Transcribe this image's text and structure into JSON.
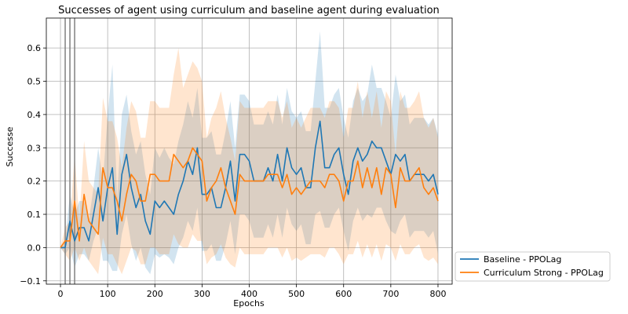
{
  "chart_data": {
    "type": "line",
    "title": "Successes of agent using curriculum and baseline agent during evaluation",
    "xlabel": "Epochs",
    "ylabel": "Successe",
    "xlim": [
      -30,
      830
    ],
    "ylim": [
      -0.11,
      0.69
    ],
    "xticks": [
      0,
      100,
      200,
      300,
      400,
      500,
      600,
      700,
      800
    ],
    "yticks": [
      -0.1,
      0.0,
      0.1,
      0.2,
      0.3,
      0.4,
      0.5,
      0.6
    ],
    "ytick_labels": [
      "−0.1",
      "0.0",
      "0.1",
      "0.2",
      "0.3",
      "0.4",
      "0.5",
      "0.6"
    ],
    "grid": true,
    "legend_placement": "outside-bottom-right",
    "vertical_markers": [
      10,
      20,
      30
    ],
    "marker_color": "#808080",
    "x": [
      0,
      10,
      20,
      30,
      40,
      50,
      60,
      70,
      80,
      90,
      100,
      110,
      120,
      130,
      140,
      150,
      160,
      170,
      180,
      190,
      200,
      210,
      220,
      230,
      240,
      250,
      260,
      270,
      280,
      290,
      300,
      310,
      320,
      330,
      340,
      350,
      360,
      370,
      380,
      390,
      400,
      410,
      420,
      430,
      440,
      450,
      460,
      470,
      480,
      490,
      500,
      510,
      520,
      530,
      540,
      550,
      560,
      570,
      580,
      590,
      600,
      610,
      620,
      630,
      640,
      650,
      660,
      670,
      680,
      690,
      700,
      710,
      720,
      730,
      740,
      750,
      760,
      770,
      780,
      790,
      800
    ],
    "series": [
      {
        "name": "Baseline - PPOLag",
        "color": "#1f77b4",
        "values": [
          0.0,
          0.0,
          0.08,
          0.02,
          0.06,
          0.06,
          0.02,
          0.1,
          0.18,
          0.08,
          0.18,
          0.24,
          0.04,
          0.22,
          0.28,
          0.18,
          0.12,
          0.16,
          0.08,
          0.04,
          0.14,
          0.12,
          0.14,
          0.12,
          0.1,
          0.16,
          0.2,
          0.26,
          0.22,
          0.3,
          0.16,
          0.16,
          0.18,
          0.12,
          0.12,
          0.18,
          0.26,
          0.14,
          0.28,
          0.28,
          0.26,
          0.2,
          0.2,
          0.2,
          0.24,
          0.2,
          0.28,
          0.2,
          0.3,
          0.24,
          0.22,
          0.24,
          0.18,
          0.18,
          0.3,
          0.38,
          0.24,
          0.24,
          0.28,
          0.3,
          0.22,
          0.16,
          0.26,
          0.3,
          0.26,
          0.28,
          0.32,
          0.3,
          0.3,
          0.26,
          0.22,
          0.28,
          0.26,
          0.28,
          0.2,
          0.22,
          0.22,
          0.22,
          0.2,
          0.22,
          0.16
        ],
        "band_upper": [
          0.0,
          0.02,
          0.16,
          0.1,
          0.14,
          0.14,
          0.08,
          0.18,
          0.3,
          0.2,
          0.4,
          0.55,
          0.15,
          0.4,
          0.46,
          0.35,
          0.28,
          0.32,
          0.22,
          0.16,
          0.3,
          0.27,
          0.3,
          0.27,
          0.25,
          0.32,
          0.37,
          0.44,
          0.39,
          0.48,
          0.33,
          0.33,
          0.35,
          0.28,
          0.28,
          0.35,
          0.44,
          0.3,
          0.46,
          0.46,
          0.44,
          0.37,
          0.37,
          0.37,
          0.41,
          0.37,
          0.46,
          0.37,
          0.48,
          0.41,
          0.39,
          0.41,
          0.35,
          0.35,
          0.5,
          0.65,
          0.42,
          0.42,
          0.46,
          0.48,
          0.39,
          0.33,
          0.44,
          0.48,
          0.44,
          0.46,
          0.55,
          0.48,
          0.48,
          0.44,
          0.39,
          0.52,
          0.44,
          0.46,
          0.37,
          0.39,
          0.39,
          0.39,
          0.37,
          0.39,
          0.34
        ],
        "band_lower": [
          0.0,
          -0.02,
          0.0,
          -0.06,
          -0.02,
          -0.02,
          -0.04,
          0.02,
          0.06,
          -0.04,
          -0.04,
          -0.07,
          -0.07,
          0.04,
          0.1,
          0.01,
          -0.04,
          0.0,
          -0.06,
          -0.08,
          -0.02,
          -0.03,
          -0.02,
          -0.03,
          -0.05,
          0.0,
          0.03,
          0.08,
          0.05,
          0.12,
          -0.01,
          -0.01,
          0.01,
          -0.04,
          -0.04,
          0.01,
          0.08,
          -0.02,
          0.1,
          0.1,
          0.08,
          0.03,
          0.03,
          0.03,
          0.07,
          0.03,
          0.1,
          0.03,
          0.12,
          0.07,
          0.05,
          0.07,
          0.01,
          0.01,
          0.1,
          0.11,
          0.06,
          0.06,
          0.1,
          0.12,
          0.05,
          -0.01,
          0.08,
          0.12,
          0.08,
          0.1,
          0.09,
          0.12,
          0.12,
          0.08,
          0.05,
          0.04,
          0.08,
          0.1,
          0.03,
          0.05,
          0.05,
          0.05,
          0.03,
          0.05,
          -0.02
        ]
      },
      {
        "name": "Curriculum Strong - PPOLag",
        "color": "#ff7f0e",
        "values": [
          0.0,
          0.02,
          0.02,
          0.14,
          0.02,
          0.16,
          0.08,
          0.06,
          0.04,
          0.24,
          0.18,
          0.18,
          0.14,
          0.08,
          0.16,
          0.22,
          0.2,
          0.14,
          0.14,
          0.22,
          0.22,
          0.2,
          0.2,
          0.2,
          0.28,
          0.26,
          0.24,
          0.26,
          0.3,
          0.28,
          0.26,
          0.14,
          0.18,
          0.2,
          0.24,
          0.18,
          0.14,
          0.1,
          0.22,
          0.2,
          0.2,
          0.2,
          0.2,
          0.2,
          0.22,
          0.22,
          0.22,
          0.18,
          0.22,
          0.16,
          0.18,
          0.16,
          0.18,
          0.2,
          0.2,
          0.2,
          0.18,
          0.22,
          0.22,
          0.2,
          0.14,
          0.2,
          0.2,
          0.26,
          0.18,
          0.24,
          0.18,
          0.24,
          0.16,
          0.24,
          0.22,
          0.12,
          0.24,
          0.2,
          0.2,
          0.22,
          0.24,
          0.18,
          0.16,
          0.18,
          0.14
        ],
        "band_upper": [
          0.0,
          0.06,
          0.08,
          0.28,
          0.08,
          0.32,
          0.2,
          0.18,
          0.16,
          0.45,
          0.38,
          0.38,
          0.33,
          0.24,
          0.36,
          0.44,
          0.41,
          0.33,
          0.33,
          0.44,
          0.44,
          0.42,
          0.42,
          0.42,
          0.52,
          0.6,
          0.48,
          0.52,
          0.56,
          0.54,
          0.5,
          0.33,
          0.39,
          0.42,
          0.47,
          0.39,
          0.33,
          0.26,
          0.44,
          0.42,
          0.42,
          0.42,
          0.42,
          0.42,
          0.44,
          0.44,
          0.44,
          0.39,
          0.44,
          0.36,
          0.39,
          0.36,
          0.39,
          0.42,
          0.42,
          0.42,
          0.39,
          0.44,
          0.44,
          0.42,
          0.33,
          0.42,
          0.42,
          0.5,
          0.39,
          0.47,
          0.39,
          0.47,
          0.36,
          0.47,
          0.44,
          0.28,
          0.47,
          0.42,
          0.42,
          0.44,
          0.47,
          0.39,
          0.36,
          0.39,
          0.33
        ],
        "band_lower": [
          0.0,
          -0.02,
          -0.04,
          0.0,
          -0.04,
          0.0,
          -0.04,
          -0.06,
          -0.08,
          0.03,
          -0.02,
          -0.02,
          -0.05,
          -0.08,
          -0.04,
          0.0,
          -0.01,
          -0.05,
          -0.05,
          0.0,
          0.0,
          -0.02,
          -0.02,
          -0.02,
          0.04,
          0.01,
          0.0,
          0.0,
          0.04,
          0.02,
          0.02,
          -0.05,
          -0.03,
          -0.02,
          0.01,
          -0.03,
          -0.05,
          -0.06,
          0.0,
          -0.02,
          -0.02,
          -0.02,
          -0.02,
          -0.02,
          0.0,
          0.0,
          0.0,
          -0.03,
          0.0,
          -0.04,
          -0.03,
          -0.04,
          -0.03,
          -0.02,
          -0.02,
          -0.02,
          -0.03,
          0.0,
          0.0,
          -0.02,
          -0.05,
          -0.02,
          -0.02,
          0.02,
          -0.03,
          0.01,
          -0.03,
          0.01,
          -0.04,
          0.01,
          0.0,
          -0.04,
          0.01,
          -0.02,
          -0.02,
          0.0,
          0.01,
          -0.03,
          -0.04,
          -0.03,
          -0.05
        ]
      }
    ]
  }
}
